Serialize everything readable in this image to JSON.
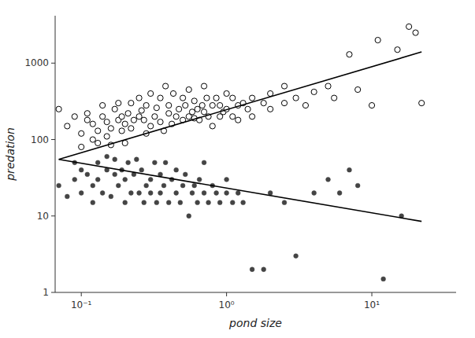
{
  "chart_data": {
    "type": "scatter",
    "xlabel": "pond size",
    "ylabel": "predation",
    "log": true,
    "grid": false,
    "xlim": [
      0.066069344800759,
      38.018939632056
    ],
    "ylim": [
      1,
      4168.693834703354
    ],
    "xticks": [
      {
        "value": 0.1,
        "label": "10⁻¹"
      },
      {
        "value": 1,
        "label": "10⁰"
      },
      {
        "value": 10,
        "label": "10¹"
      }
    ],
    "yticks": [
      1,
      10,
      100,
      1000
    ],
    "series": [
      {
        "type": "scatter",
        "marker": "open-circle",
        "color": "#000000",
        "x": [
          0.07,
          0.08,
          0.09,
          0.1,
          0.1,
          0.11,
          0.11,
          0.12,
          0.12,
          0.13,
          0.13,
          0.14,
          0.14,
          0.15,
          0.15,
          0.16,
          0.16,
          0.17,
          0.18,
          0.18,
          0.19,
          0.19,
          0.2,
          0.2,
          0.21,
          0.22,
          0.22,
          0.23,
          0.25,
          0.25,
          0.26,
          0.27,
          0.28,
          0.28,
          0.3,
          0.3,
          0.32,
          0.33,
          0.35,
          0.35,
          0.37,
          0.38,
          0.4,
          0.4,
          0.42,
          0.43,
          0.45,
          0.47,
          0.5,
          0.5,
          0.52,
          0.55,
          0.55,
          0.58,
          0.6,
          0.6,
          0.63,
          0.65,
          0.68,
          0.7,
          0.7,
          0.73,
          0.75,
          0.8,
          0.8,
          0.85,
          0.9,
          0.9,
          0.95,
          1.0,
          1.0,
          1.1,
          1.1,
          1.2,
          1.2,
          1.3,
          1.4,
          1.5,
          1.5,
          1.8,
          2.0,
          2.0,
          2.5,
          2.5,
          3.0,
          3.5,
          4.0,
          5.0,
          5.5,
          7.0,
          8.0,
          10.0,
          11.0,
          15.0,
          18.0,
          20.0,
          22.0
        ],
        "values": [
          250,
          150,
          200,
          80,
          120,
          180,
          220,
          100,
          160,
          90,
          130,
          200,
          280,
          110,
          170,
          85,
          140,
          250,
          180,
          300,
          130,
          200,
          90,
          160,
          220,
          140,
          300,
          180,
          200,
          350,
          240,
          180,
          120,
          280,
          150,
          400,
          200,
          260,
          170,
          350,
          130,
          500,
          220,
          280,
          160,
          400,
          200,
          250,
          180,
          350,
          280,
          200,
          450,
          230,
          190,
          320,
          250,
          180,
          280,
          230,
          500,
          350,
          200,
          280,
          150,
          350,
          200,
          280,
          230,
          250,
          400,
          200,
          350,
          280,
          180,
          300,
          250,
          200,
          350,
          300,
          250,
          400,
          300,
          500,
          350,
          280,
          420,
          500,
          350,
          1300,
          450,
          280,
          2000,
          1500,
          3000,
          2500,
          300
        ]
      },
      {
        "type": "scatter",
        "marker": "filled-circle",
        "color": "#444444",
        "x": [
          0.07,
          0.08,
          0.09,
          0.09,
          0.1,
          0.1,
          0.11,
          0.12,
          0.12,
          0.13,
          0.13,
          0.14,
          0.15,
          0.15,
          0.16,
          0.17,
          0.17,
          0.18,
          0.19,
          0.2,
          0.2,
          0.21,
          0.22,
          0.23,
          0.24,
          0.25,
          0.26,
          0.27,
          0.28,
          0.3,
          0.3,
          0.32,
          0.33,
          0.35,
          0.35,
          0.37,
          0.38,
          0.4,
          0.42,
          0.45,
          0.45,
          0.48,
          0.5,
          0.52,
          0.55,
          0.58,
          0.6,
          0.63,
          0.65,
          0.7,
          0.7,
          0.75,
          0.8,
          0.85,
          0.9,
          1.0,
          1.0,
          1.1,
          1.2,
          1.3,
          1.5,
          1.8,
          2.0,
          2.5,
          3.0,
          4.0,
          5.0,
          6.0,
          7.0,
          8.0,
          12.0,
          16.0
        ],
        "values": [
          25,
          18,
          30,
          50,
          20,
          40,
          35,
          15,
          25,
          30,
          50,
          20,
          40,
          60,
          18,
          35,
          55,
          25,
          40,
          15,
          30,
          50,
          20,
          35,
          55,
          20,
          40,
          15,
          25,
          20,
          30,
          50,
          15,
          20,
          35,
          25,
          50,
          15,
          30,
          20,
          40,
          15,
          25,
          35,
          10,
          20,
          25,
          15,
          30,
          20,
          50,
          15,
          25,
          20,
          15,
          20,
          30,
          15,
          20,
          15,
          2,
          2,
          20,
          15,
          3,
          20,
          30,
          20,
          40,
          25,
          1.5,
          10
        ]
      },
      {
        "type": "line",
        "color": "#000000",
        "x": [
          0.07,
          22.0
        ],
        "values": [
          55.0,
          1400.0
        ]
      },
      {
        "type": "line",
        "color": "#000000",
        "x": [
          0.07,
          22.0
        ],
        "values": [
          55.0,
          8.5
        ]
      }
    ]
  }
}
